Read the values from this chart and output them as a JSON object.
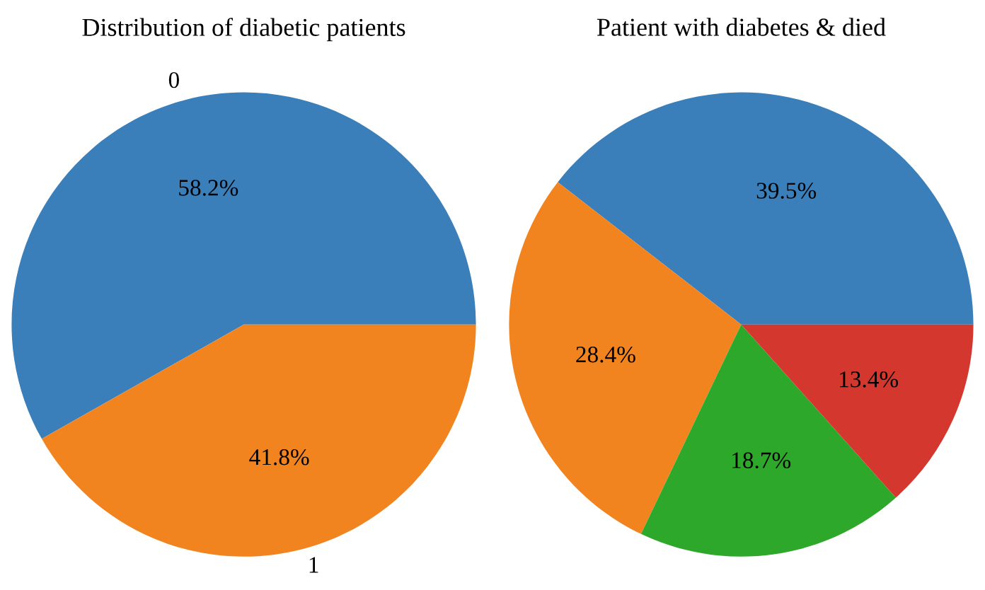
{
  "chart_data": [
    {
      "type": "pie",
      "title": "Distribution of diabetic patients",
      "categories": [
        "0",
        "1"
      ],
      "values": [
        58.2,
        41.8
      ],
      "colors": [
        "#3a7fb9",
        "#f2841f"
      ],
      "value_labels": [
        "58.2%",
        "41.8%"
      ]
    },
    {
      "type": "pie",
      "title": "Patient with diabetes & died",
      "categories": [
        null,
        null,
        null,
        null
      ],
      "values": [
        39.5,
        28.4,
        18.7,
        13.4
      ],
      "colors": [
        "#3a7fb9",
        "#f2841f",
        "#2ea82a",
        "#d3372e"
      ],
      "value_labels": [
        "39.5%",
        "28.4%",
        "18.7%",
        "13.4%"
      ]
    }
  ]
}
